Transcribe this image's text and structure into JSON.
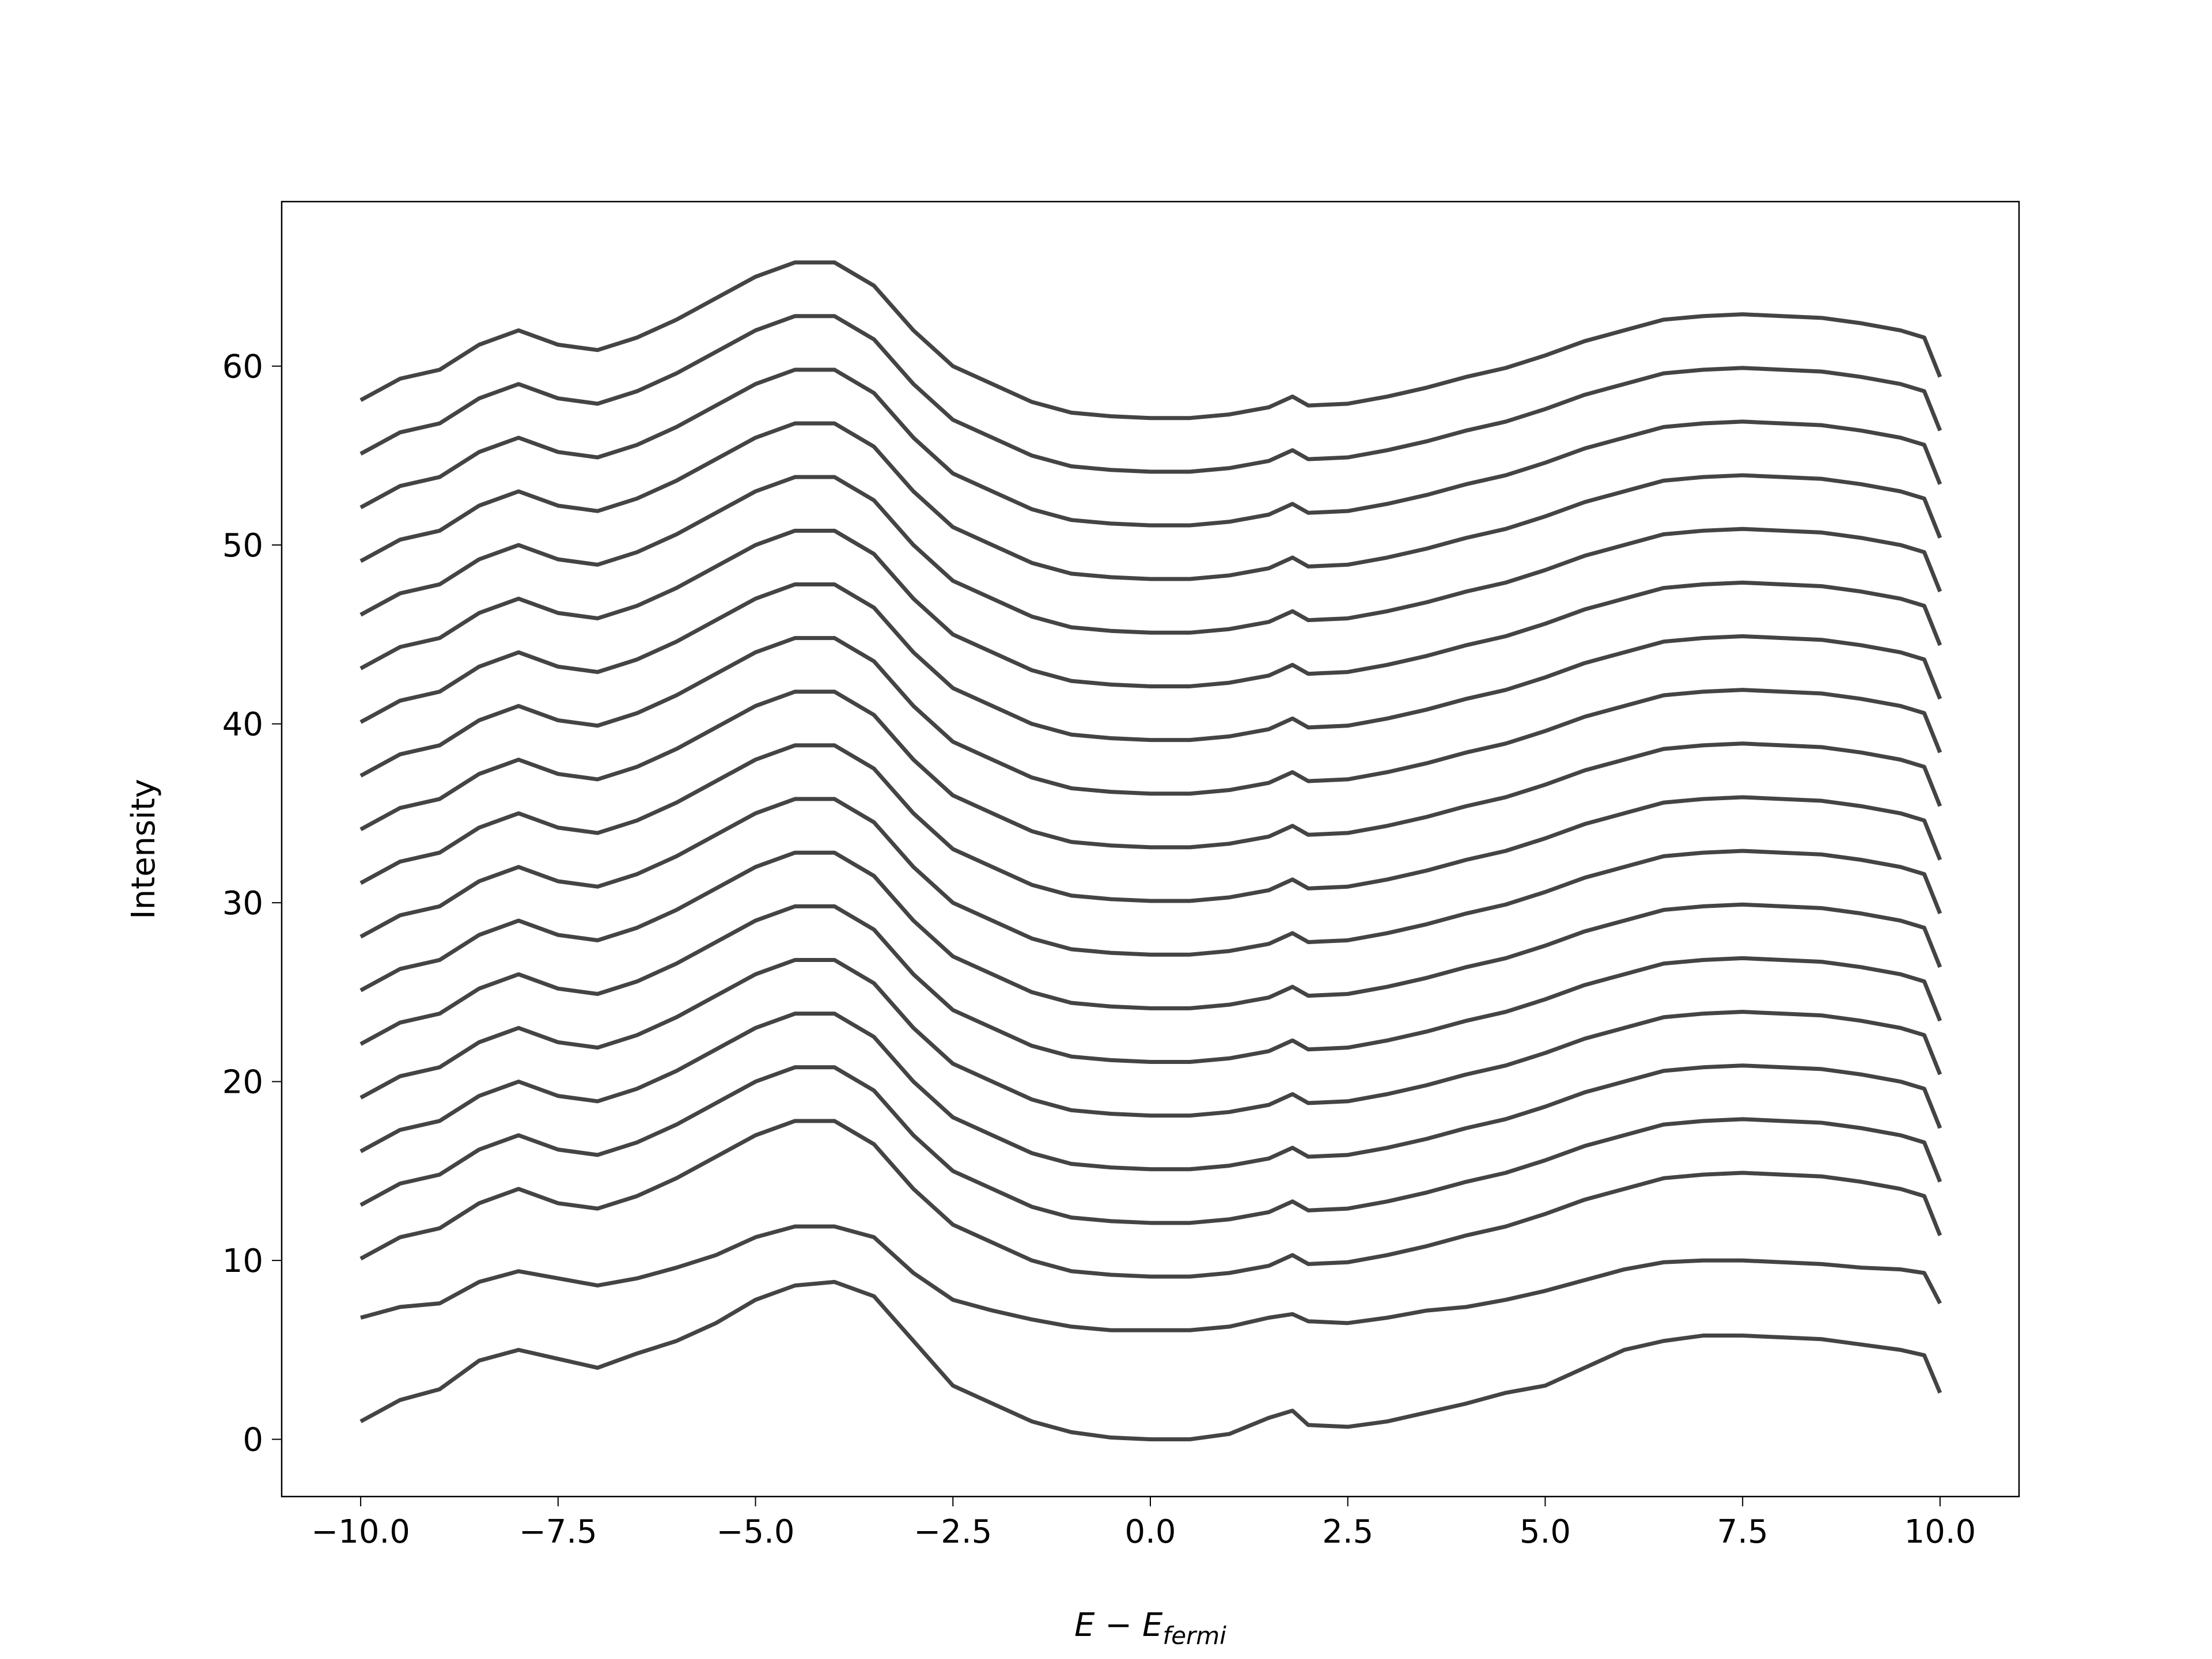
{
  "chart_data": {
    "type": "line",
    "xlabel": "E − E",
    "xlabel_sub": "fermi",
    "ylabel": "Intensity",
    "color": "#444444",
    "xlim": [
      -11,
      11
    ],
    "ylim": [
      -3.2,
      69.2
    ],
    "xticks": [
      {
        "value": -10,
        "label": "−10.0"
      },
      {
        "value": -7.5,
        "label": "−7.5"
      },
      {
        "value": -5,
        "label": "−5.0"
      },
      {
        "value": -2.5,
        "label": "−2.5"
      },
      {
        "value": 0,
        "label": "0.0"
      },
      2.5,
      {
        "value": 5,
        "label": "5.0"
      },
      7.5,
      {
        "value": 10,
        "label": "10.0"
      }
    ],
    "yticks": [
      0,
      10,
      20,
      30,
      40,
      50,
      60
    ],
    "x": [
      -10,
      -9.5,
      -9,
      -8.5,
      -8,
      -7.5,
      -7,
      -6.5,
      -6,
      -5.5,
      -5,
      -4.5,
      -4,
      -3.5,
      -3,
      -2.5,
      -2,
      -1.5,
      -1,
      -0.5,
      0,
      0.5,
      1,
      1.5,
      1.8,
      2,
      2.5,
      3,
      3.5,
      4,
      4.5,
      5,
      5.5,
      6,
      6.5,
      7,
      7.5,
      8,
      8.5,
      9,
      9.5,
      9.8,
      10
    ],
    "series": [
      {
        "values": [
          1,
          2.2,
          2.8,
          4.4,
          5,
          4.5,
          4,
          4.8,
          5.5,
          6.5,
          7.8,
          8.6,
          8.8,
          8,
          5.5,
          3,
          2,
          1,
          0.4,
          0.1,
          0,
          0,
          0.3,
          1.2,
          1.6,
          0.8,
          0.7,
          1,
          1.5,
          2,
          2.6,
          3,
          4,
          5,
          5.5,
          5.8,
          5.8,
          5.7,
          5.6,
          5.3,
          5,
          4.7,
          2.6
        ]
      },
      {
        "values": [
          6.8,
          7.4,
          7.6,
          8.8,
          9.4,
          9,
          8.6,
          9,
          9.6,
          10.3,
          11.3,
          11.9,
          11.9,
          11.3,
          9.3,
          7.8,
          7.2,
          6.7,
          6.3,
          6.1,
          6.1,
          6.1,
          6.3,
          6.8,
          7,
          6.6,
          6.5,
          6.8,
          7.2,
          7.4,
          7.8,
          8.3,
          8.9,
          9.5,
          9.9,
          10,
          10,
          9.9,
          9.8,
          9.6,
          9.5,
          9.3,
          7.6
        ]
      },
      {
        "values": [
          10.1,
          11.3,
          11.8,
          13.2,
          14,
          13.2,
          12.9,
          13.6,
          14.6,
          15.8,
          17,
          17.8,
          17.8,
          16.5,
          14,
          12,
          11,
          10,
          9.4,
          9.2,
          9.1,
          9.1,
          9.3,
          9.7,
          10.3,
          9.8,
          9.9,
          10.3,
          10.8,
          11.4,
          11.9,
          12.6,
          13.4,
          14,
          14.6,
          14.8,
          14.9,
          14.8,
          14.7,
          14.4,
          14,
          13.6,
          11.4
        ]
      },
      {
        "values": [
          13.1,
          14.3,
          14.8,
          16.2,
          17,
          16.2,
          15.9,
          16.6,
          17.6,
          18.8,
          20,
          20.8,
          20.8,
          19.5,
          17,
          15,
          14,
          13,
          12.4,
          12.2,
          12.1,
          12.1,
          12.3,
          12.7,
          13.3,
          12.8,
          12.9,
          13.3,
          13.8,
          14.4,
          14.9,
          15.6,
          16.4,
          17,
          17.6,
          17.8,
          17.9,
          17.8,
          17.7,
          17.4,
          17,
          16.6,
          14.4
        ]
      },
      {
        "values": [
          16.1,
          17.3,
          17.8,
          19.2,
          20,
          19.2,
          18.9,
          19.6,
          20.6,
          21.8,
          23,
          23.8,
          23.8,
          22.5,
          20,
          18,
          17,
          16,
          15.4,
          15.2,
          15.1,
          15.1,
          15.3,
          15.7,
          16.3,
          15.8,
          15.9,
          16.3,
          16.8,
          17.4,
          17.9,
          18.6,
          19.4,
          20,
          20.6,
          20.8,
          20.9,
          20.8,
          20.7,
          20.4,
          20,
          19.6,
          17.4
        ]
      },
      {
        "values": [
          19.1,
          20.3,
          20.8,
          22.2,
          23,
          22.2,
          21.9,
          22.6,
          23.6,
          24.8,
          26,
          26.8,
          26.8,
          25.5,
          23,
          21,
          20,
          19,
          18.4,
          18.2,
          18.1,
          18.1,
          18.3,
          18.7,
          19.3,
          18.8,
          18.9,
          19.3,
          19.8,
          20.4,
          20.9,
          21.6,
          22.4,
          23,
          23.6,
          23.8,
          23.9,
          23.8,
          23.7,
          23.4,
          23,
          22.6,
          20.4
        ]
      },
      {
        "values": [
          22.1,
          23.3,
          23.8,
          25.2,
          26,
          25.2,
          24.9,
          25.6,
          26.6,
          27.8,
          29,
          29.8,
          29.8,
          28.5,
          26,
          24,
          23,
          22,
          21.4,
          21.2,
          21.1,
          21.1,
          21.3,
          21.7,
          22.3,
          21.8,
          21.9,
          22.3,
          22.8,
          23.4,
          23.9,
          24.6,
          25.4,
          26,
          26.6,
          26.8,
          26.9,
          26.8,
          26.7,
          26.4,
          26,
          25.6,
          23.4
        ]
      },
      {
        "values": [
          25.1,
          26.3,
          26.8,
          28.2,
          29,
          28.2,
          27.9,
          28.6,
          29.6,
          30.8,
          32,
          32.8,
          32.8,
          31.5,
          29,
          27,
          26,
          25,
          24.4,
          24.2,
          24.1,
          24.1,
          24.3,
          24.7,
          25.3,
          24.8,
          24.9,
          25.3,
          25.8,
          26.4,
          26.9,
          27.6,
          28.4,
          29,
          29.6,
          29.8,
          29.9,
          29.8,
          29.7,
          29.4,
          29,
          28.6,
          26.4
        ]
      },
      {
        "values": [
          28.1,
          29.3,
          29.8,
          31.2,
          32,
          31.2,
          30.9,
          31.6,
          32.6,
          33.8,
          35,
          35.8,
          35.8,
          34.5,
          32,
          30,
          29,
          28,
          27.4,
          27.2,
          27.1,
          27.1,
          27.3,
          27.7,
          28.3,
          27.8,
          27.9,
          28.3,
          28.8,
          29.4,
          29.9,
          30.6,
          31.4,
          32,
          32.6,
          32.8,
          32.9,
          32.8,
          32.7,
          32.4,
          32,
          31.6,
          29.4
        ]
      },
      {
        "values": [
          31.1,
          32.3,
          32.8,
          34.2,
          35,
          34.2,
          33.9,
          34.6,
          35.6,
          36.8,
          38,
          38.8,
          38.8,
          37.5,
          35,
          33,
          32,
          31,
          30.4,
          30.2,
          30.1,
          30.1,
          30.3,
          30.7,
          31.3,
          30.8,
          30.9,
          31.3,
          31.8,
          32.4,
          32.9,
          33.6,
          34.4,
          35,
          35.6,
          35.8,
          35.9,
          35.8,
          35.7,
          35.4,
          35,
          34.6,
          32.4
        ]
      },
      {
        "values": [
          34.1,
          35.3,
          35.8,
          37.2,
          38,
          37.2,
          36.9,
          37.6,
          38.6,
          39.8,
          41,
          41.8,
          41.8,
          40.5,
          38,
          36,
          35,
          34,
          33.4,
          33.2,
          33.1,
          33.1,
          33.3,
          33.7,
          34.3,
          33.8,
          33.9,
          34.3,
          34.8,
          35.4,
          35.9,
          36.6,
          37.4,
          38,
          38.6,
          38.8,
          38.9,
          38.8,
          38.7,
          38.4,
          38,
          37.6,
          35.4
        ]
      },
      {
        "values": [
          37.1,
          38.3,
          38.8,
          40.2,
          41,
          40.2,
          39.9,
          40.6,
          41.6,
          42.8,
          44,
          44.8,
          44.8,
          43.5,
          41,
          39,
          38,
          37,
          36.4,
          36.2,
          36.1,
          36.1,
          36.3,
          36.7,
          37.3,
          36.8,
          36.9,
          37.3,
          37.8,
          38.4,
          38.9,
          39.6,
          40.4,
          41,
          41.6,
          41.8,
          41.9,
          41.8,
          41.7,
          41.4,
          41,
          40.6,
          38.4
        ]
      },
      {
        "values": [
          40.1,
          41.3,
          41.8,
          43.2,
          44,
          43.2,
          42.9,
          43.6,
          44.6,
          45.8,
          47,
          47.8,
          47.8,
          46.5,
          44,
          42,
          41,
          40,
          39.4,
          39.2,
          39.1,
          39.1,
          39.3,
          39.7,
          40.3,
          39.8,
          39.9,
          40.3,
          40.8,
          41.4,
          41.9,
          42.6,
          43.4,
          44,
          44.6,
          44.8,
          44.9,
          44.8,
          44.7,
          44.4,
          44,
          43.6,
          41.4
        ]
      },
      {
        "values": [
          43.1,
          44.3,
          44.8,
          46.2,
          47,
          46.2,
          45.9,
          46.6,
          47.6,
          48.8,
          50,
          50.8,
          50.8,
          49.5,
          47,
          45,
          44,
          43,
          42.4,
          42.2,
          42.1,
          42.1,
          42.3,
          42.7,
          43.3,
          42.8,
          42.9,
          43.3,
          43.8,
          44.4,
          44.9,
          45.6,
          46.4,
          47,
          47.6,
          47.8,
          47.9,
          47.8,
          47.7,
          47.4,
          47,
          46.6,
          44.4
        ]
      },
      {
        "values": [
          46.1,
          47.3,
          47.8,
          49.2,
          50,
          49.2,
          48.9,
          49.6,
          50.6,
          51.8,
          53,
          53.8,
          53.8,
          52.5,
          50,
          48,
          47,
          46,
          45.4,
          45.2,
          45.1,
          45.1,
          45.3,
          45.7,
          46.3,
          45.8,
          45.9,
          46.3,
          46.8,
          47.4,
          47.9,
          48.6,
          49.4,
          50,
          50.6,
          50.8,
          50.9,
          50.8,
          50.7,
          50.4,
          50,
          49.6,
          47.4
        ]
      },
      {
        "values": [
          49.1,
          50.3,
          50.8,
          52.2,
          53,
          52.2,
          51.9,
          52.6,
          53.6,
          54.8,
          56,
          56.8,
          56.8,
          55.5,
          53,
          51,
          50,
          49,
          48.4,
          48.2,
          48.1,
          48.1,
          48.3,
          48.7,
          49.3,
          48.8,
          48.9,
          49.3,
          49.8,
          50.4,
          50.9,
          51.6,
          52.4,
          53,
          53.6,
          53.8,
          53.9,
          53.8,
          53.7,
          53.4,
          53,
          52.6,
          50.4
        ]
      },
      {
        "values": [
          52.1,
          53.3,
          53.8,
          55.2,
          56,
          55.2,
          54.9,
          55.6,
          56.6,
          57.8,
          59,
          59.8,
          59.8,
          58.5,
          56,
          54,
          53,
          52,
          51.4,
          51.2,
          51.1,
          51.1,
          51.3,
          51.7,
          52.3,
          51.8,
          51.9,
          52.3,
          52.8,
          53.4,
          53.9,
          54.6,
          55.4,
          56,
          56.6,
          56.8,
          56.9,
          56.8,
          56.7,
          56.4,
          56,
          55.6,
          53.4
        ]
      },
      {
        "values": [
          55.1,
          56.3,
          56.8,
          58.2,
          59,
          58.2,
          57.9,
          58.6,
          59.6,
          60.8,
          62,
          62.8,
          62.8,
          61.5,
          59,
          57,
          56,
          55,
          54.4,
          54.2,
          54.1,
          54.1,
          54.3,
          54.7,
          55.3,
          54.8,
          54.9,
          55.3,
          55.8,
          56.4,
          56.9,
          57.6,
          58.4,
          59,
          59.6,
          59.8,
          59.9,
          59.8,
          59.7,
          59.4,
          59,
          58.6,
          56.4
        ]
      },
      {
        "values": [
          58.1,
          59.3,
          59.8,
          61.2,
          62,
          61.2,
          60.9,
          61.6,
          62.6,
          63.8,
          65,
          65.8,
          65.8,
          64.5,
          62,
          60,
          59,
          58,
          57.4,
          57.2,
          57.1,
          57.1,
          57.3,
          57.7,
          58.3,
          57.8,
          57.9,
          58.3,
          58.8,
          59.4,
          59.9,
          60.6,
          61.4,
          62,
          62.6,
          62.8,
          62.9,
          62.8,
          62.7,
          62.4,
          62,
          61.6,
          59.4
        ]
      }
    ]
  }
}
